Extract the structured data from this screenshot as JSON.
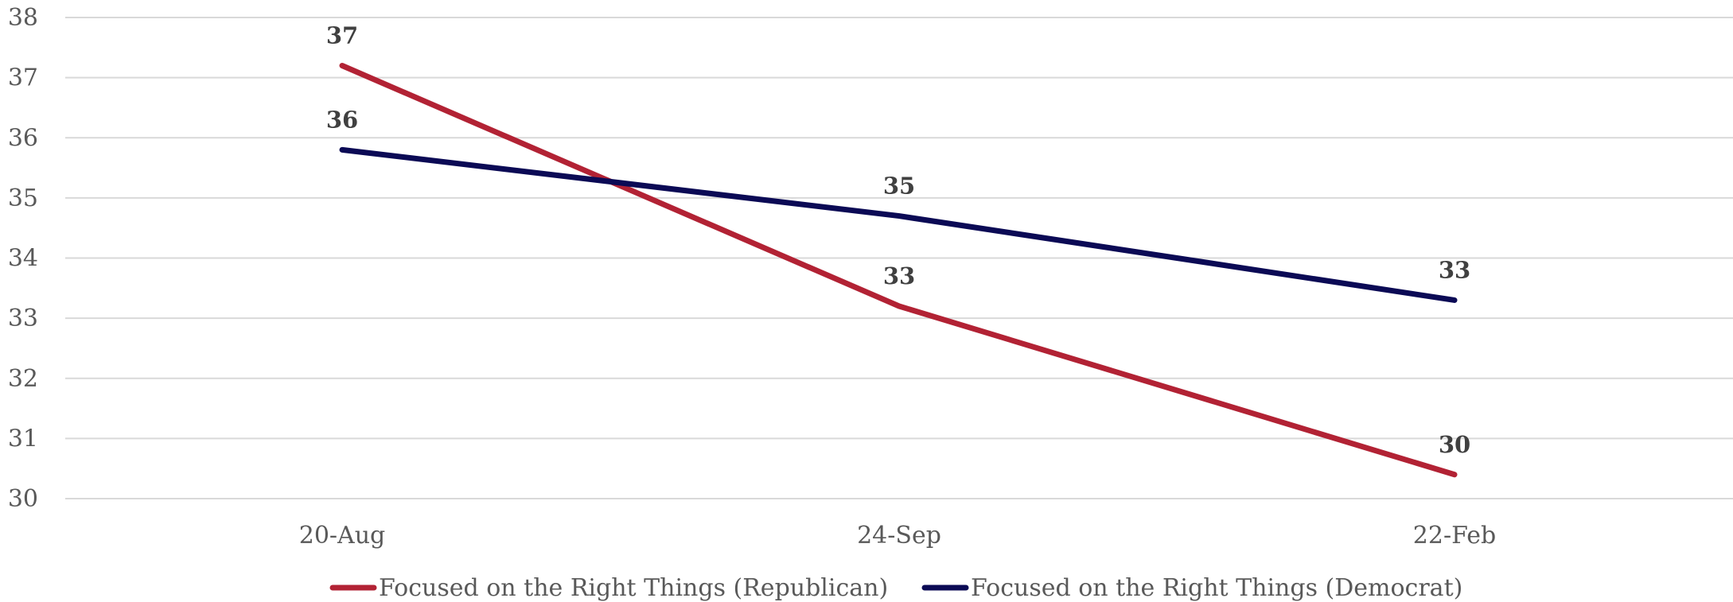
{
  "chart_data": {
    "type": "line",
    "title": "",
    "xlabel": "",
    "ylabel": "",
    "categories": [
      "20-Aug",
      "24-Sep",
      "22-Feb"
    ],
    "ylim": [
      30,
      38
    ],
    "yticks": [
      30,
      31,
      32,
      33,
      34,
      35,
      36,
      37,
      38
    ],
    "grid": true,
    "legend_position": "bottom",
    "series": [
      {
        "name": "Focused on the Right Things (Republican)",
        "color": "#b22234",
        "values": [
          37.2,
          33.2,
          30.4
        ],
        "labels": [
          "37",
          "33",
          "30"
        ]
      },
      {
        "name": "Focused on the Right Things (Democrat)",
        "color": "#0b0a55",
        "values": [
          35.8,
          34.7,
          33.3
        ],
        "labels": [
          "36",
          "35",
          "33"
        ]
      }
    ]
  }
}
